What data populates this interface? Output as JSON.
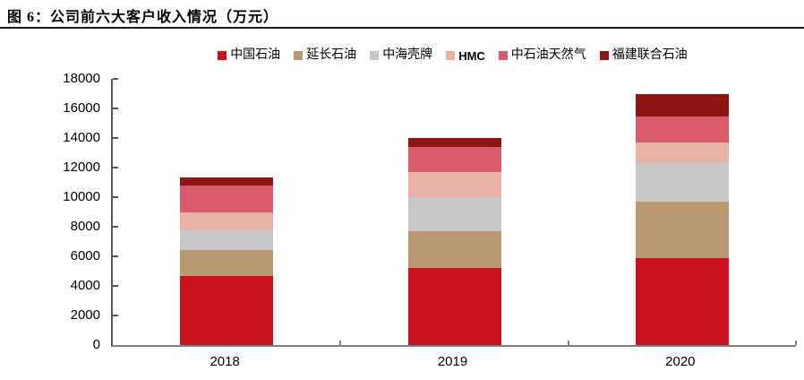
{
  "figure": {
    "label": "图 6：",
    "title": "公司前六大客户收入情况（万元）",
    "full_title": "图 6：公司前六大客户收入情况（万元）"
  },
  "chart_data": {
    "type": "bar",
    "stacked": true,
    "title": "公司前六大客户收入情况（万元）",
    "categories": [
      "2018",
      "2019",
      "2020"
    ],
    "series": [
      {
        "name": "中国石油",
        "color": "#C9121E",
        "values": [
          4650,
          5200,
          5860
        ]
      },
      {
        "name": "延长石油",
        "color": "#B99A70",
        "values": [
          1780,
          2480,
          3840
        ]
      },
      {
        "name": "中海壳牌",
        "color": "#C7C8CA",
        "values": [
          1350,
          2320,
          2620
        ]
      },
      {
        "name": "HMC",
        "color": "#E9B2A7",
        "values": [
          1210,
          1700,
          1360
        ]
      },
      {
        "name": "中石油天然气",
        "color": "#D95C6C",
        "values": [
          1820,
          1680,
          1780
        ]
      },
      {
        "name": "福建联合石油",
        "color": "#8C1614",
        "values": [
          510,
          600,
          1500
        ]
      }
    ],
    "totals": [
      11320,
      13980,
      16960
    ],
    "ylim": [
      0,
      18000
    ],
    "ytick_step": 2000,
    "yticks": [
      0,
      2000,
      4000,
      6000,
      8000,
      10000,
      12000,
      14000,
      16000,
      18000
    ],
    "xlabel": "",
    "ylabel": "",
    "grid": false,
    "legend_position": "top"
  },
  "colors": {
    "axis_y": "#595959",
    "axis_x": "#7F7F7F",
    "title_rule": "#1A1A1A"
  }
}
